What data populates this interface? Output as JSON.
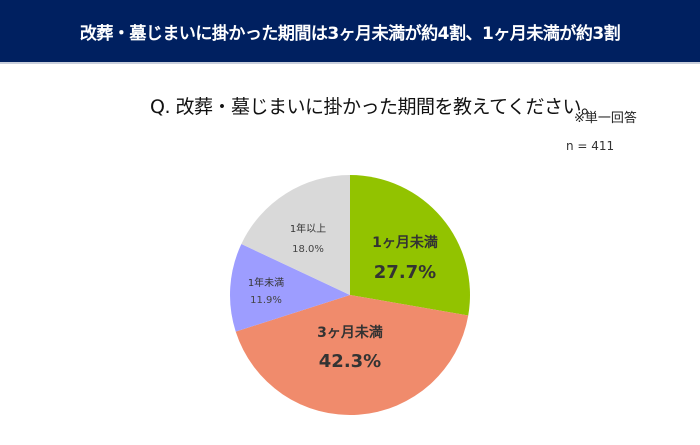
{
  "header": {
    "title": "改葬・墓じまいに掛かった期間は3ヶ月未満が約4割、1ヶ月未満が約3割",
    "background": "#002060"
  },
  "question": "Q. 改葬・墓じまいに掛かった期間を教えてください。",
  "note": "※単一回答",
  "sample": "n = 411",
  "chart_data": {
    "type": "pie",
    "title": "Q. 改葬・墓じまいに掛かった期間を教えてください。",
    "categories": [
      "1ヶ月未満",
      "3ヶ月未満",
      "1年未満",
      "1年以上"
    ],
    "values": [
      27.7,
      42.3,
      11.9,
      18.0
    ],
    "colors": [
      "#92c300",
      "#f08b6c",
      "#9d9dff",
      "#d9d9d9"
    ],
    "start_angle": "12 o'clock, clockwise",
    "n": 411,
    "legend": "none (labels inside slices)"
  },
  "labels": {
    "s0": {
      "name": "1ヶ月未満",
      "value": "27.7%"
    },
    "s1": {
      "name": "3ヶ月未満",
      "value": "42.3%"
    },
    "s2": {
      "name": "1年未満",
      "value": "11.9%"
    },
    "s3": {
      "name": "1年以上",
      "value": "18.0%"
    }
  }
}
